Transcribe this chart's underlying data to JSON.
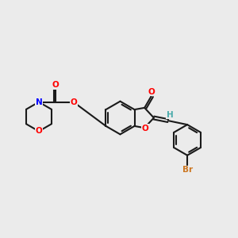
{
  "bg_color": "#ebebeb",
  "bond_color": "#1a1a1a",
  "atom_colors": {
    "O": "#ff0000",
    "N": "#0000ff",
    "Br": "#cc7722",
    "H": "#4aabab",
    "C": "#1a1a1a"
  },
  "figsize": [
    3.0,
    3.0
  ],
  "dpi": 100
}
